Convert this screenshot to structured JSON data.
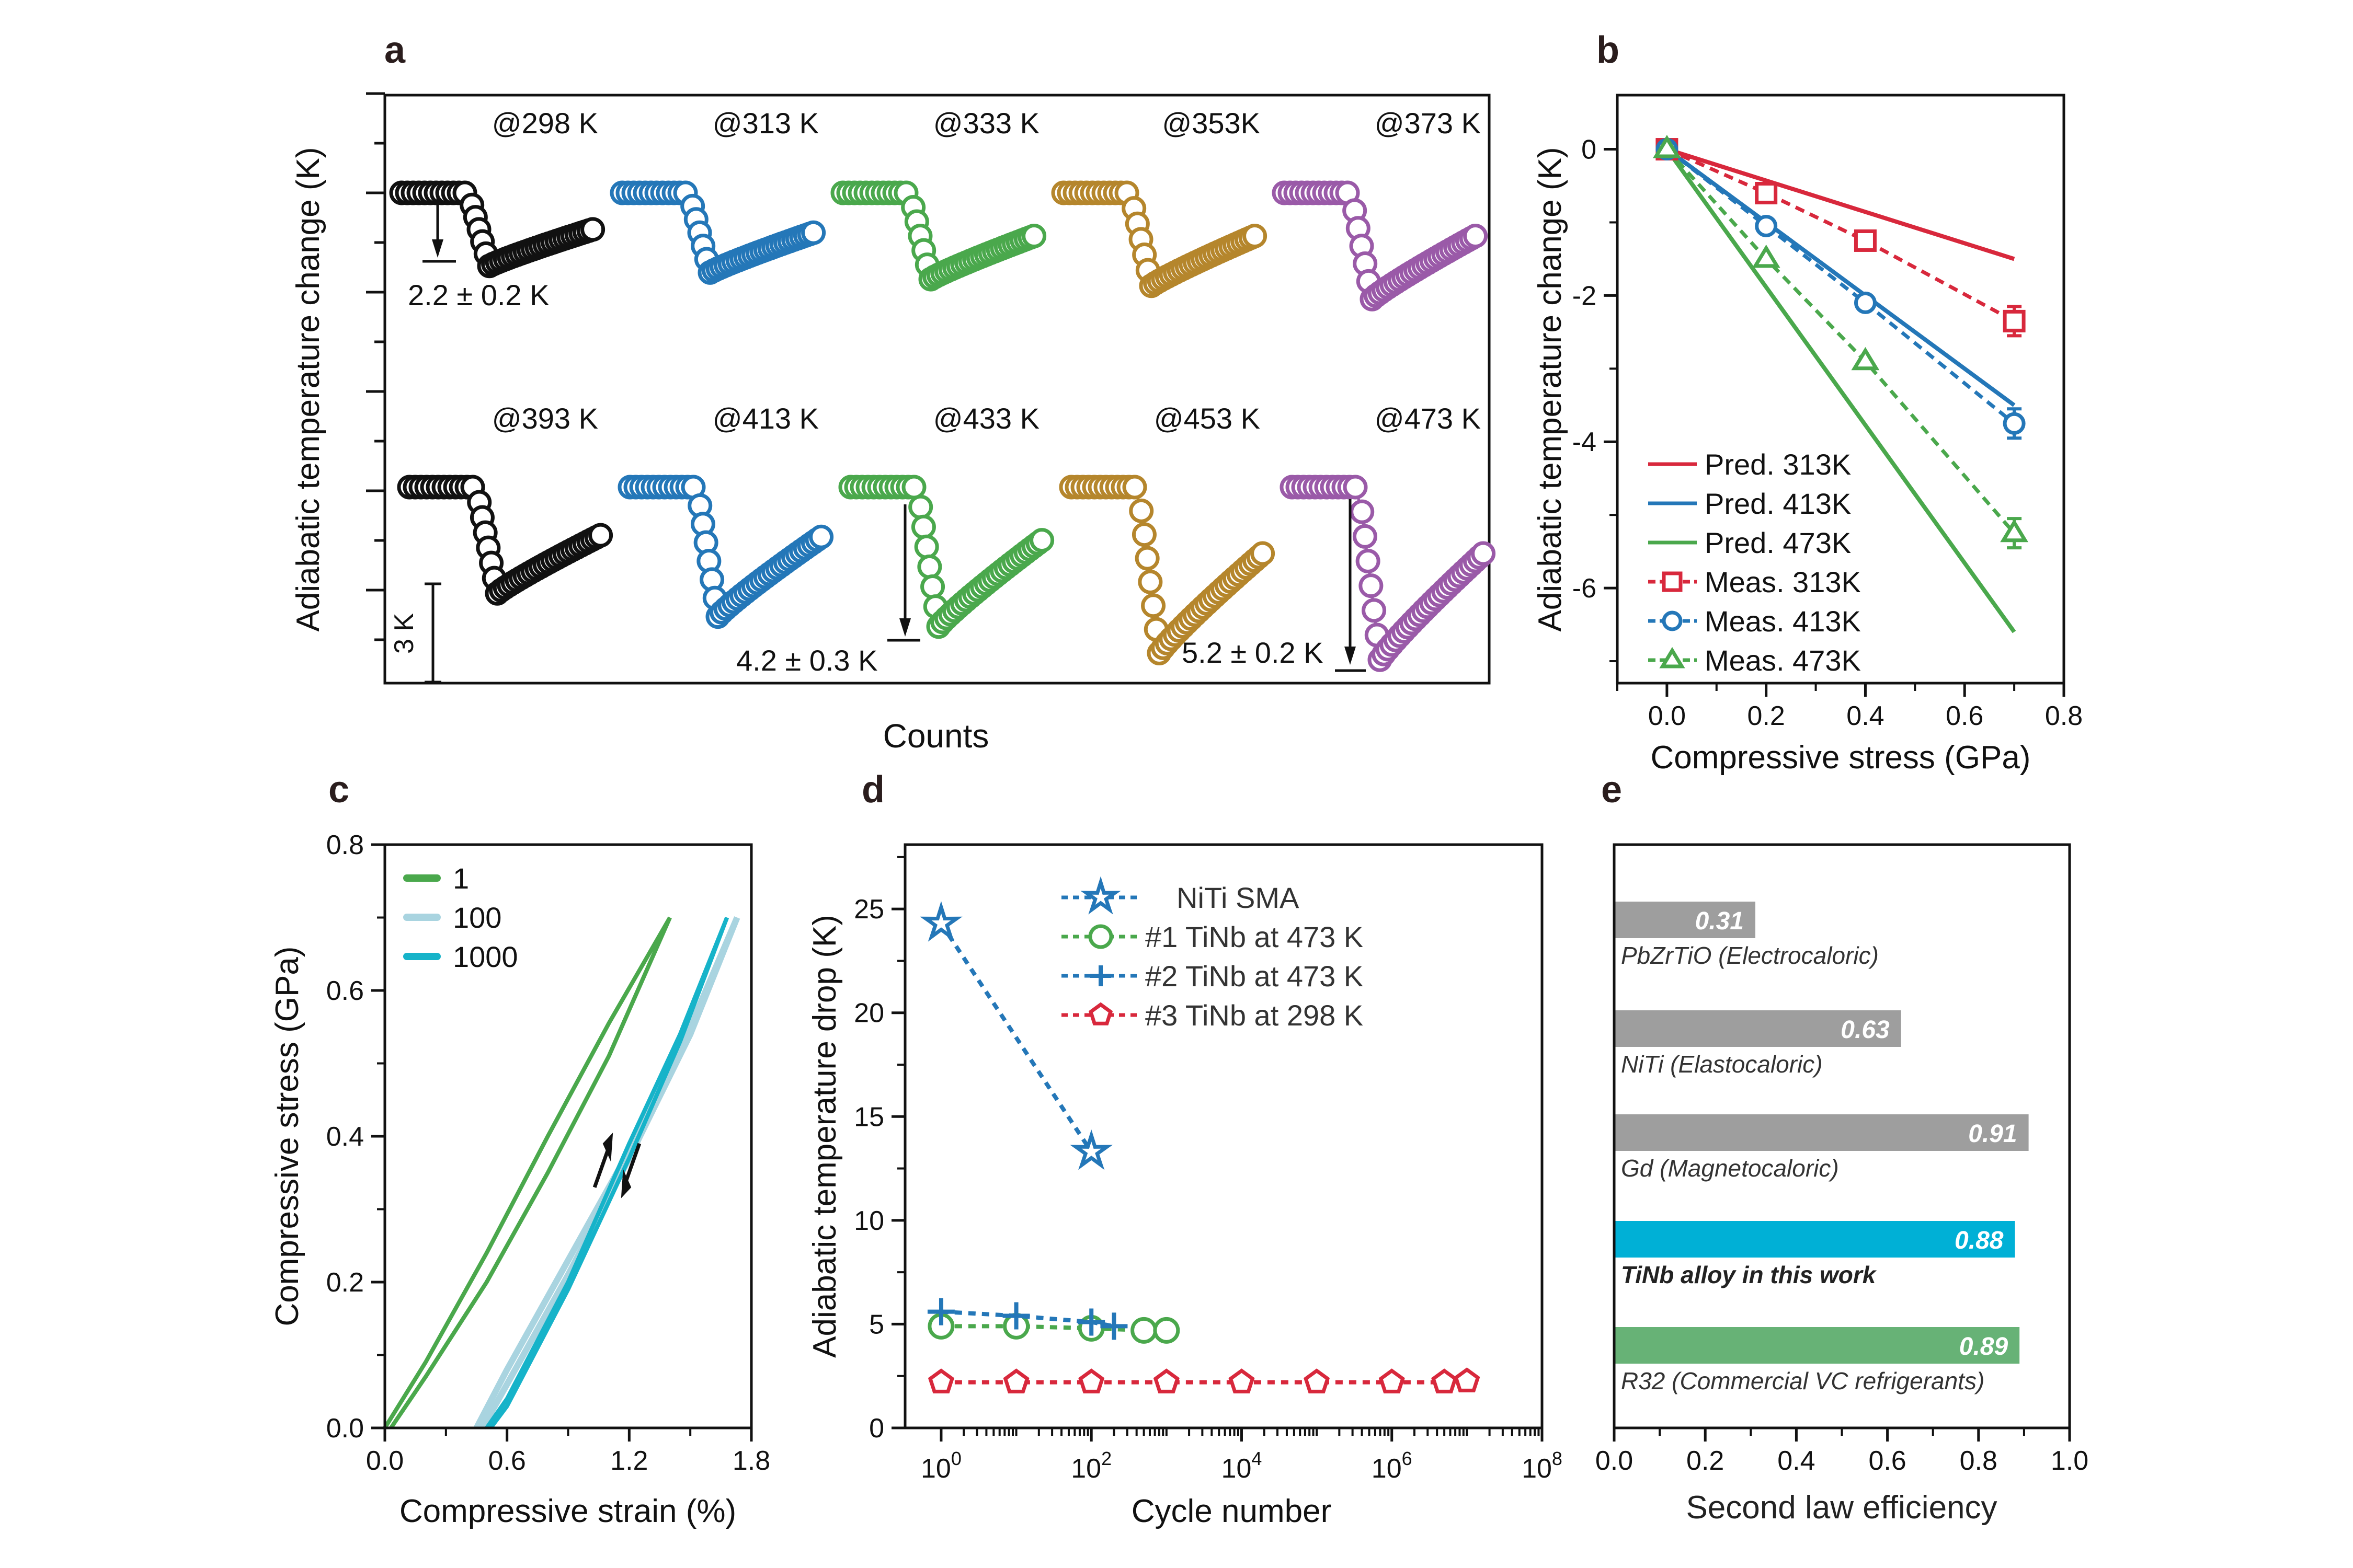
{
  "panel_letters": [
    "a",
    "b",
    "c",
    "d",
    "e"
  ],
  "colors": {
    "black": "#111111",
    "blue": "#2477b8",
    "green": "#4aa84c",
    "gold": "#b5862c",
    "purple": "#9a5aa8",
    "red": "#d8283c",
    "grey_bar": "#9e9e9e",
    "cyan_bar": "#00b0d6",
    "green_bar": "#67b276",
    "light_blue": "#a9d4e0",
    "teal": "#16b3c9"
  },
  "chart_data": [
    {
      "type": "scatter",
      "ylabel": "Adiabatic temperature change (K)",
      "xlabel": "Counts",
      "scale_bar": "3 K",
      "subplots": [
        {
          "label": "@298 K",
          "color": "#111111",
          "min_change_K": -2.2,
          "end_change_K": -1.1
        },
        {
          "label": "@313 K",
          "color": "#2477b8",
          "min_change_K": -2.4,
          "end_change_K": -1.2
        },
        {
          "label": "@333 K",
          "color": "#4aa84c",
          "min_change_K": -2.6,
          "end_change_K": -1.3
        },
        {
          "label": "@353K",
          "color": "#b5862c",
          "min_change_K": -2.8,
          "end_change_K": -1.3
        },
        {
          "label": "@373 K",
          "color": "#9a5aa8",
          "min_change_K": -3.2,
          "end_change_K": -1.3
        },
        {
          "label": "@393 K",
          "color": "#111111",
          "min_change_K": -3.2,
          "end_change_K": -1.45
        },
        {
          "label": "@413 K",
          "color": "#2477b8",
          "min_change_K": -3.9,
          "end_change_K": -1.5
        },
        {
          "label": "@433 K",
          "color": "#4aa84c",
          "min_change_K": -4.2,
          "end_change_K": -1.6
        },
        {
          "label": "@453 K",
          "color": "#b5862c",
          "min_change_K": -5.0,
          "end_change_K": -2.0
        },
        {
          "label": "@473 K",
          "color": "#9a5aa8",
          "min_change_K": -5.2,
          "end_change_K": -2.0
        }
      ],
      "annotations": [
        "2.2 ± 0.2 K",
        "4.2 ± 0.3 K",
        "5.2 ± 0.2 K"
      ]
    },
    {
      "type": "line",
      "xlabel": "Compressive stress (GPa)",
      "ylabel": "Adiabatic temperature change (K)",
      "xlim": [
        -0.1,
        0.8
      ],
      "ylim": [
        -7.3,
        0.74
      ],
      "xticks": [
        {
          "v": 0,
          "t": "0.0"
        },
        {
          "v": 0.2,
          "t": "0.2"
        },
        {
          "v": 0.4,
          "t": "0.4"
        },
        {
          "v": 0.6,
          "t": "0.6"
        },
        {
          "v": 0.8,
          "t": "0.8"
        }
      ],
      "yticks": [
        {
          "v": 0,
          "t": "0"
        },
        {
          "v": -2,
          "t": "-2"
        },
        {
          "v": -4,
          "t": "-4"
        },
        {
          "v": -6,
          "t": "-6"
        }
      ],
      "legend_position": "bottom-left",
      "series": [
        {
          "name": "Pred. 313K",
          "color": "#d8283c",
          "style": "solid",
          "marker": "none",
          "x": [
            0,
            0.7
          ],
          "y": [
            0,
            -1.5
          ]
        },
        {
          "name": "Pred. 413K",
          "color": "#2477b8",
          "style": "solid",
          "marker": "none",
          "x": [
            0,
            0.7
          ],
          "y": [
            0,
            -3.5
          ]
        },
        {
          "name": "Pred. 473K",
          "color": "#4aa84c",
          "style": "solid",
          "marker": "none",
          "x": [
            0,
            0.7
          ],
          "y": [
            0,
            -6.6
          ]
        },
        {
          "name": "Meas. 313K",
          "color": "#d8283c",
          "style": "dashed",
          "marker": "square",
          "x": [
            0,
            0.2,
            0.4,
            0.7
          ],
          "y": [
            0,
            -0.6,
            -1.25,
            -2.35
          ],
          "err": [
            0,
            0.05,
            0.05,
            0.2
          ]
        },
        {
          "name": "Meas. 413K",
          "color": "#2477b8",
          "style": "dashed",
          "marker": "circle",
          "x": [
            0,
            0.2,
            0.4,
            0.7
          ],
          "y": [
            0,
            -1.05,
            -2.1,
            -3.75
          ],
          "err": [
            0,
            0.05,
            0.05,
            0.2
          ]
        },
        {
          "name": "Meas. 473K",
          "color": "#4aa84c",
          "style": "dashed",
          "marker": "triangle",
          "x": [
            0,
            0.2,
            0.4,
            0.7
          ],
          "y": [
            0,
            -1.5,
            -2.9,
            -5.25
          ],
          "err": [
            0,
            0.05,
            0.05,
            0.2
          ]
        }
      ]
    },
    {
      "type": "line",
      "xlabel": "Compressive strain (%)",
      "ylabel": "Compressive stress (GPa)",
      "xlim": [
        0,
        1.8
      ],
      "ylim": [
        0,
        0.8
      ],
      "xticks": [
        {
          "v": 0,
          "t": "0.0"
        },
        {
          "v": 0.6,
          "t": "0.6"
        },
        {
          "v": 1.2,
          "t": "1.2"
        },
        {
          "v": 1.8,
          "t": "1.8"
        }
      ],
      "yticks": [
        {
          "v": 0,
          "t": "0.0"
        },
        {
          "v": 0.2,
          "t": "0.2"
        },
        {
          "v": 0.4,
          "t": "0.4"
        },
        {
          "v": 0.6,
          "t": "0.6"
        },
        {
          "v": 0.8,
          "t": "0.8"
        }
      ],
      "legend_position": "top-left",
      "series": [
        {
          "name": "1",
          "color": "#4aa84c",
          "loading": {
            "x": [
              0,
              0.2,
              0.5,
              0.8,
              1.1,
              1.4
            ],
            "y": [
              0,
              0.09,
              0.24,
              0.4,
              0.555,
              0.7
            ]
          },
          "unloading": {
            "x": [
              0.03,
              0.2,
              0.5,
              0.8,
              1.1,
              1.4
            ],
            "y": [
              0,
              0.07,
              0.2,
              0.35,
              0.51,
              0.7
            ]
          }
        },
        {
          "name": "100",
          "color": "#a9d4e0",
          "loading": {
            "x": [
              0.45,
              0.6,
              0.9,
              1.2,
              1.5,
              1.73
            ],
            "y": [
              0,
              0.08,
              0.23,
              0.38,
              0.55,
              0.7
            ]
          },
          "unloading": {
            "x": [
              0.48,
              0.6,
              0.9,
              1.2,
              1.5,
              1.73
            ],
            "y": [
              0,
              0.06,
              0.21,
              0.37,
              0.54,
              0.7
            ]
          }
        },
        {
          "name": "1000",
          "color": "#16b3c9",
          "loading": {
            "x": [
              0.5,
              0.6,
              0.9,
              1.2,
              1.45,
              1.68
            ],
            "y": [
              0,
              0.04,
              0.2,
              0.39,
              0.54,
              0.7
            ]
          },
          "unloading": {
            "x": [
              0.52,
              0.6,
              0.9,
              1.2,
              1.45,
              1.68
            ],
            "y": [
              0,
              0.03,
              0.19,
              0.37,
              0.53,
              0.7
            ]
          }
        }
      ]
    },
    {
      "type": "scatter",
      "xlabel": "Cycle number",
      "ylabel": "Adiabatic temperature drop (K)",
      "xscale": "log",
      "xlim": [
        0.33,
        100000000
      ],
      "ylim": [
        0,
        28.1
      ],
      "xticks": [
        {
          "v": 1,
          "base": "10",
          "exp": "0"
        },
        {
          "v": 100,
          "base": "10",
          "exp": "2"
        },
        {
          "v": 10000,
          "base": "10",
          "exp": "4"
        },
        {
          "v": 1000000,
          "base": "10",
          "exp": "6"
        },
        {
          "v": 100000000,
          "base": "10",
          "exp": "8"
        }
      ],
      "yticks": [
        {
          "v": 0,
          "t": "0"
        },
        {
          "v": 5,
          "t": "5"
        },
        {
          "v": 10,
          "t": "10"
        },
        {
          "v": 15,
          "t": "15"
        },
        {
          "v": 20,
          "t": "20"
        },
        {
          "v": 25,
          "t": "25"
        }
      ],
      "legend_position": "top",
      "series": [
        {
          "name": "NiTi SMA",
          "color": "#2477b8",
          "marker": "star",
          "x": [
            1,
            100
          ],
          "y": [
            24.3,
            13.3
          ]
        },
        {
          "name": "#1 TiNb at 473 K",
          "color": "#4aa84c",
          "marker": "circle",
          "x": [
            1,
            10,
            100,
            500,
            1000
          ],
          "y": [
            4.9,
            4.9,
            4.8,
            4.7,
            4.7
          ]
        },
        {
          "name": "#2 TiNb at 473 K",
          "color": "#2477b8",
          "marker": "plus",
          "x": [
            1,
            10,
            100,
            200
          ],
          "y": [
            5.6,
            5.4,
            5.1,
            4.9
          ]
        },
        {
          "name": "#3 TiNb at 298 K",
          "color": "#d8283c",
          "marker": "pentagon",
          "x": [
            1,
            10,
            100,
            1000,
            10000,
            100000,
            1000000,
            5000000,
            10000000
          ],
          "y": [
            2.2,
            2.2,
            2.2,
            2.2,
            2.2,
            2.2,
            2.2,
            2.2,
            2.25
          ]
        }
      ]
    },
    {
      "type": "bar",
      "orientation": "horizontal",
      "xlabel": "Second law efficiency",
      "xlim": [
        0,
        1.0
      ],
      "xticks": [
        {
          "v": 0,
          "t": "0.0"
        },
        {
          "v": 0.2,
          "t": "0.2"
        },
        {
          "v": 0.4,
          "t": "0.4"
        },
        {
          "v": 0.6,
          "t": "0.6"
        },
        {
          "v": 0.8,
          "t": "0.8"
        },
        {
          "v": 1.0,
          "t": "1.0"
        }
      ],
      "categories": [
        "PbZrTiO (Electrocaloric)",
        "NiTi (Elastocaloric)",
        "Gd (Magnetocaloric)",
        "TiNb alloy in this work",
        "R32 (Commercial VC refrigerants)"
      ],
      "values": [
        0.31,
        0.63,
        0.91,
        0.88,
        0.89
      ],
      "value_labels": [
        "0.31",
        "0.63",
        "0.91",
        "0.88",
        "0.89"
      ],
      "bar_colors": [
        "#9e9e9e",
        "#9e9e9e",
        "#9e9e9e",
        "#00b0d6",
        "#67b276"
      ]
    }
  ]
}
